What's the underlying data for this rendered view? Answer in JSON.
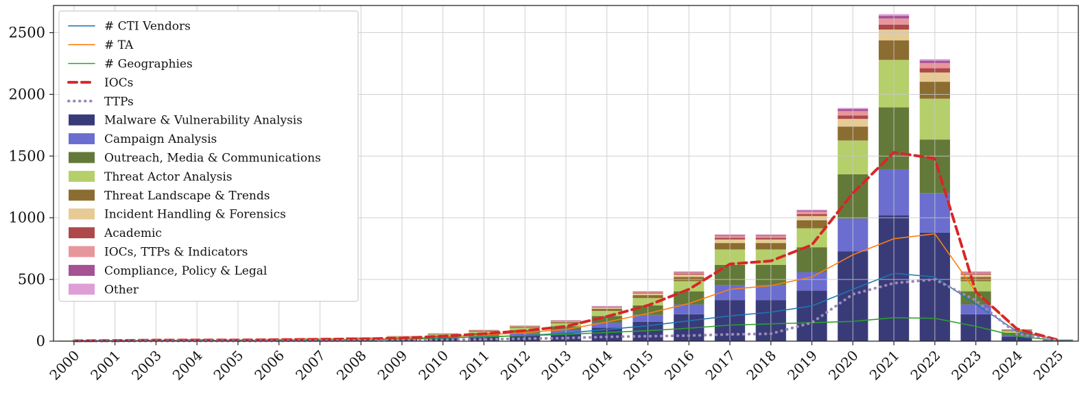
{
  "figure": {
    "background": "#ffffff",
    "frame_color": "#262626",
    "grid_color": "#c8c8c8"
  },
  "chart_data": {
    "type": "bar",
    "subtype": "stacked-bars-with-line-overlays",
    "title": "",
    "xlabel": "",
    "ylabel": "",
    "grid": true,
    "legend_position": "upper-left",
    "ylim": [
      0,
      2720
    ],
    "yticks": [
      0,
      500,
      1000,
      1500,
      2000,
      2500
    ],
    "ytick_labels": [
      "0",
      "500",
      "1000",
      "1500",
      "2000",
      "2500"
    ],
    "categories": [
      "2000",
      "2001",
      "2003",
      "2004",
      "2005",
      "2006",
      "2007",
      "2008",
      "2009",
      "2010",
      "2011",
      "2012",
      "2013",
      "2014",
      "2015",
      "2016",
      "2017",
      "2018",
      "2019",
      "2020",
      "2021",
      "2022",
      "2023",
      "2024",
      "2025"
    ],
    "bar_series": [
      {
        "name": "Malware & Vulnerability Analysis",
        "color": "#393b79",
        "values": [
          2,
          3,
          5,
          6,
          6,
          8,
          10,
          12,
          16,
          24,
          35,
          48,
          65,
          110,
          156,
          218,
          333,
          333,
          410,
          728,
          1020,
          880,
          218,
          37,
          6
        ]
      },
      {
        "name": "Campaign Analysis",
        "color": "#6b6ecf",
        "values": [
          1,
          1,
          2,
          2,
          2,
          3,
          4,
          4,
          6,
          9,
          13,
          18,
          24,
          40,
          57,
          79,
          121,
          121,
          149,
          265,
          371,
          320,
          79,
          13,
          2
        ]
      },
      {
        "name": "Outreach, Media & Communications",
        "color": "#637939",
        "values": [
          1,
          2,
          3,
          3,
          3,
          4,
          5,
          6,
          8,
          12,
          17,
          24,
          32,
          54,
          77,
          107,
          164,
          164,
          202,
          359,
          504,
          434,
          107,
          18,
          3
        ]
      },
      {
        "name": "Threat Actor Analysis",
        "color": "#b5cf6b",
        "values": [
          1,
          1,
          2,
          2,
          2,
          3,
          4,
          4,
          6,
          9,
          13,
          18,
          24,
          41,
          59,
          82,
          125,
          125,
          154,
          274,
          384,
          331,
          82,
          14,
          2
        ]
      },
      {
        "name": "Threat Landscape & Trends",
        "color": "#8c6d31",
        "values": [
          0,
          1,
          1,
          1,
          1,
          1,
          2,
          2,
          3,
          4,
          6,
          8,
          10,
          17,
          24,
          34,
          52,
          52,
          64,
          113,
          159,
          137,
          34,
          6,
          1
        ]
      },
      {
        "name": "Incident Handling & Forensics",
        "color": "#e7cb94",
        "values": [
          0,
          0,
          1,
          1,
          1,
          1,
          1,
          1,
          1,
          2,
          3,
          4,
          6,
          9,
          13,
          19,
          29,
          29,
          35,
          62,
          87,
          75,
          19,
          3,
          1
        ]
      },
      {
        "name": "Academic",
        "color": "#ad494a",
        "values": [
          0,
          0,
          0,
          1,
          0,
          0,
          0,
          1,
          1,
          1,
          1,
          2,
          3,
          4,
          6,
          8,
          13,
          13,
          16,
          28,
          40,
          34,
          8,
          1,
          0
        ]
      },
      {
        "name": "IOCs, TTPs & Indicators",
        "color": "#e7969c",
        "values": [
          0,
          0,
          0,
          0,
          0,
          0,
          0,
          0,
          1,
          1,
          2,
          2,
          3,
          5,
          8,
          11,
          16,
          16,
          20,
          36,
          50,
          43,
          11,
          2,
          0
        ]
      },
      {
        "name": "Compliance, Policy & Legal",
        "color": "#a55194",
        "values": [
          0,
          0,
          0,
          0,
          0,
          0,
          0,
          0,
          0,
          1,
          1,
          1,
          1,
          2,
          3,
          5,
          7,
          7,
          9,
          15,
          21,
          18,
          5,
          1,
          0
        ]
      },
      {
        "name": "Other",
        "color": "#de9ed6",
        "values": [
          0,
          0,
          0,
          0,
          0,
          0,
          0,
          0,
          0,
          1,
          1,
          0,
          0,
          3,
          2,
          2,
          5,
          5,
          6,
          10,
          14,
          13,
          2,
          0,
          0
        ]
      }
    ],
    "line_series": [
      {
        "name": "# CTI Vendors",
        "color": "#1f77b4",
        "style": "solid",
        "width": 1.6,
        "values": [
          2,
          3,
          4,
          5,
          5,
          6,
          8,
          10,
          14,
          25,
          35,
          45,
          65,
          95,
          125,
          165,
          205,
          235,
          285,
          420,
          550,
          520,
          300,
          80,
          10
        ]
      },
      {
        "name": "# TA",
        "color": "#ff7f0e",
        "style": "solid",
        "width": 1.6,
        "values": [
          2,
          3,
          5,
          6,
          6,
          8,
          10,
          14,
          20,
          35,
          50,
          70,
          95,
          155,
          225,
          305,
          420,
          450,
          520,
          700,
          830,
          870,
          400,
          90,
          10
        ]
      },
      {
        "name": "# Geographies",
        "color": "#2ca02c",
        "style": "solid",
        "width": 1.6,
        "values": [
          2,
          3,
          4,
          5,
          5,
          6,
          8,
          10,
          14,
          28,
          35,
          45,
          55,
          70,
          85,
          105,
          130,
          140,
          150,
          160,
          190,
          185,
          120,
          40,
          5
        ]
      },
      {
        "name": "IOCs",
        "color": "#d62728",
        "style": "dashed",
        "width": 4,
        "values": [
          3,
          5,
          8,
          9,
          9,
          12,
          15,
          18,
          25,
          40,
          60,
          85,
          120,
          200,
          290,
          420,
          625,
          650,
          780,
          1200,
          1530,
          1480,
          400,
          100,
          10
        ]
      },
      {
        "name": "TTPs",
        "color": "#9c89b8",
        "style": "dotted",
        "width": 4,
        "values": [
          1,
          1,
          2,
          2,
          2,
          3,
          4,
          5,
          7,
          10,
          15,
          20,
          25,
          35,
          40,
          45,
          55,
          60,
          150,
          380,
          470,
          500,
          330,
          60,
          5
        ]
      }
    ]
  }
}
